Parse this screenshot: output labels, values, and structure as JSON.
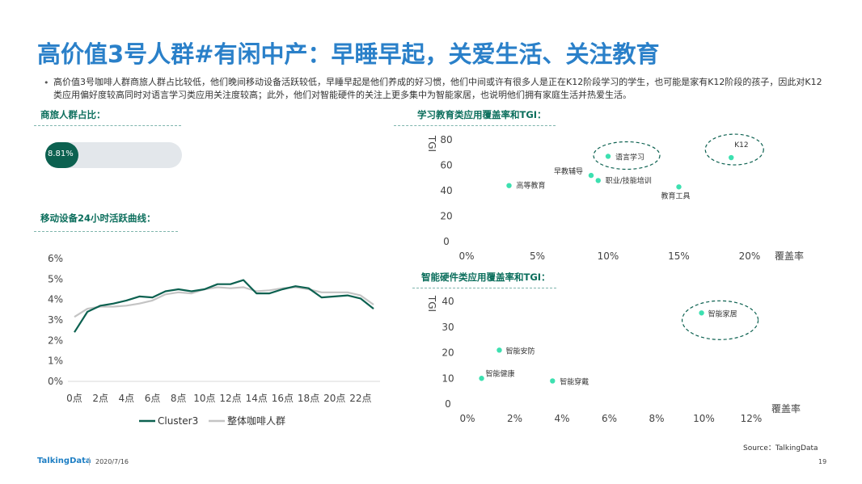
{
  "header": {
    "title": "高价值3号人群#有闲中产：早睡早起，关爱生活、关注教育",
    "bullet": "高价值3号咖啡人群商旅人群占比较低，他们晚间移动设备活跃较低，早睡早起是他们养成的好习惯，他们中间或许有很多人是正在K12阶段学习的学生，也可能是家有K12阶段的孩子，因此对K12类应用偏好度较高同时对语言学习类应用关注度较高；此外，他们对智能硬件的关注上更多集中为智能家居，也说明他们拥有家庭生活并热爱生活。"
  },
  "sections": {
    "business_share": "商旅人群占比：",
    "activity_curve": "移动设备24小时活跃曲线：",
    "education_apps": "学习教育类应用覆盖率和TGI：",
    "smart_hardware": "智能硬件类应用覆盖率和TGI："
  },
  "footer": {
    "source": "Source：TalkingData",
    "logo": "TalkingData",
    "date": "2020/7/16",
    "page": "19"
  },
  "colors": {
    "title": "#2a80c9",
    "cluster": "#0c6150",
    "overall": "#c4c4c4",
    "point": "#3de0b0",
    "section": "#0b6e5c"
  },
  "chart_data": [
    {
      "type": "bar",
      "title": "商旅人群占比：",
      "values": [
        8.81
      ],
      "value_labels": [
        "8.81%"
      ],
      "ylim": [
        0,
        100
      ]
    },
    {
      "type": "line",
      "title": "移动设备24小时活跃曲线：",
      "x": [
        "0点",
        "1点",
        "2点",
        "3点",
        "4点",
        "5点",
        "6点",
        "7点",
        "8点",
        "9点",
        "10点",
        "11点",
        "12点",
        "13点",
        "14点",
        "15点",
        "16点",
        "17点",
        "18点",
        "19点",
        "20点",
        "21点",
        "22点",
        "23点"
      ],
      "x_tick_labels": [
        "0点",
        "2点",
        "4点",
        "6点",
        "8点",
        "10点",
        "12点",
        "14点",
        "16点",
        "18点",
        "20点",
        "22点"
      ],
      "y_tick_labels": [
        "0%",
        "1%",
        "2%",
        "3%",
        "4%",
        "5%",
        "6%"
      ],
      "ylim": [
        0,
        6
      ],
      "series": [
        {
          "name": "Cluster3",
          "values": [
            2.4,
            3.4,
            3.7,
            3.8,
            3.95,
            4.15,
            4.1,
            4.4,
            4.5,
            4.4,
            4.5,
            4.75,
            4.75,
            4.95,
            4.3,
            4.3,
            4.5,
            4.65,
            4.55,
            4.1,
            4.15,
            4.2,
            4.05,
            3.55
          ]
        },
        {
          "name": "整体咖啡人群",
          "values": [
            3.15,
            3.55,
            3.65,
            3.65,
            3.7,
            3.8,
            3.95,
            4.25,
            4.35,
            4.3,
            4.5,
            4.6,
            4.55,
            4.6,
            4.4,
            4.45,
            4.55,
            4.6,
            4.5,
            4.35,
            4.35,
            4.35,
            4.2,
            3.75
          ]
        }
      ],
      "legend": "bottom"
    },
    {
      "type": "scatter",
      "title": "学习教育类应用覆盖率和TGI：",
      "xlabel": "覆盖率",
      "ylabel": "TGI",
      "xlim": [
        0,
        20
      ],
      "ylim": [
        0,
        80
      ],
      "x_tick_labels": [
        "0%",
        "5%",
        "10%",
        "15%",
        "20%"
      ],
      "y_tick_labels": [
        "0",
        "20",
        "40",
        "60",
        "80"
      ],
      "points": [
        {
          "label": "高等教育",
          "x": 3.0,
          "y": 44
        },
        {
          "label": "早教辅导",
          "x": 8.8,
          "y": 52
        },
        {
          "label": "职业/技能培训",
          "x": 9.3,
          "y": 48
        },
        {
          "label": "语言学习",
          "x": 10.0,
          "y": 67
        },
        {
          "label": "教育工具",
          "x": 15.0,
          "y": 43
        },
        {
          "label": "K12",
          "x": 18.7,
          "y": 66
        }
      ],
      "highlighted": [
        "语言学习",
        "K12"
      ]
    },
    {
      "type": "scatter",
      "title": "智能硬件类应用覆盖率和TGI：",
      "xlabel": "覆盖率",
      "ylabel": "TGI",
      "xlim": [
        0,
        12
      ],
      "ylim": [
        0,
        40
      ],
      "x_tick_labels": [
        "0%",
        "2%",
        "4%",
        "6%",
        "8%",
        "10%",
        "12%"
      ],
      "y_tick_labels": [
        "0",
        "10",
        "20",
        "30",
        "40"
      ],
      "points": [
        {
          "label": "智能安防",
          "x": 1.35,
          "y": 21
        },
        {
          "label": "智能健康",
          "x": 0.6,
          "y": 10
        },
        {
          "label": "智能穿戴",
          "x": 3.6,
          "y": 9
        },
        {
          "label": "智能家居",
          "x": 9.9,
          "y": 35.5
        }
      ],
      "highlighted": [
        "智能家居"
      ]
    }
  ]
}
